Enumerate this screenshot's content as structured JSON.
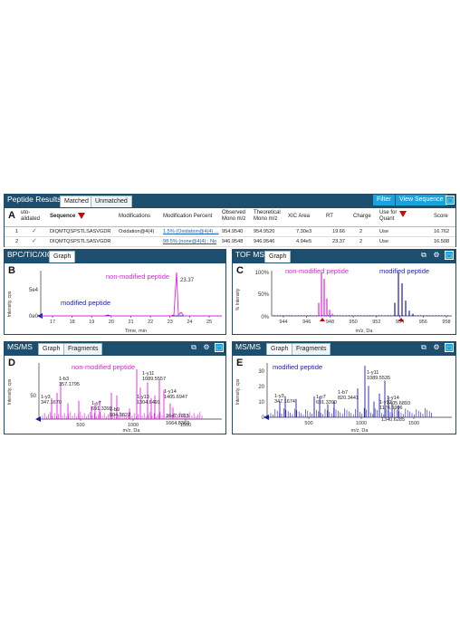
{
  "peptide_results": {
    "title": "Peptide Results",
    "tabs": [
      "Matched",
      "Unmatched"
    ],
    "filter_label": "Filter",
    "view_sequence_label": "View Sequence",
    "panel_letter": "A",
    "columns": [
      "uto-\nalidated",
      "Sequence",
      "Modifications",
      "Modification Percent",
      "Observed\nMono m/z",
      "Theoretical\nMono m/z",
      "XIC Area",
      "RT",
      "Charge",
      "Use for\nQuant",
      "Score"
    ],
    "rows": [
      {
        "n": "1",
        "check": "✓",
        "sequence": "DIQMTQSPSTLSASVGDR",
        "modifications": "Oxidation@4(4)",
        "mod_percent": "1.5% (Oxidation@4(4) ...",
        "observed": "954.9540",
        "theoretical": "954.9520",
        "xic": "7.30e3",
        "rt": "19.66",
        "charge": "2",
        "quant": "Use",
        "score": "16.762"
      },
      {
        "n": "2",
        "check": "✓",
        "sequence": "DIQMTQSPSTLSASVGDR",
        "modifications": "",
        "mod_percent": "98.5% (none@4(4) ; No",
        "observed": "946.9548",
        "theoretical": "946.9546",
        "xic": "4.94e5",
        "rt": "23.37",
        "charge": "2",
        "quant": "Use",
        "score": "16.508"
      }
    ]
  },
  "bpc": {
    "title": "BPC/TIC/XIC",
    "tab": "Graph",
    "letter": "B",
    "ylabel": "Intensity, cps",
    "xlabel": "Time, min",
    "xticks": [
      "17",
      "18",
      "19",
      "20",
      "21",
      "22",
      "23",
      "24",
      "25"
    ],
    "yticks": [
      "5e4",
      "0e0"
    ],
    "peak_label": "23.37",
    "label_unmod": "non-modified peptide",
    "label_mod": "modified peptide",
    "color_unmod": "#e020e0",
    "color_mod": "#1a1ab0"
  },
  "tofms": {
    "title": "TOF MS",
    "tab": "Graph",
    "letter": "C",
    "ylabel": "% Intensity",
    "xlabel": "m/z, Da",
    "xticks": [
      "944",
      "946",
      "948",
      "950",
      "952",
      "954",
      "956",
      "958"
    ],
    "yticks": [
      "100%",
      "50%",
      "0%"
    ],
    "label_unmod": "non-modified peptide",
    "label_mod": "modified peptide"
  },
  "msms_d": {
    "title": "MS/MS",
    "tabs": [
      "Graph",
      "Fragments"
    ],
    "letter": "D",
    "ylabel": "Intensity, cps",
    "xlabel": "m/z, Da",
    "xticks": [
      "500",
      "1000",
      "1500"
    ],
    "yticks": [
      "50"
    ],
    "label": "non-modified peptide",
    "annotations": [
      {
        "ion": "1-b3",
        "mz": "357.1795"
      },
      {
        "ion": "1-y3",
        "mz": "347.1670"
      },
      {
        "ion": "1-y7",
        "mz": "691.3392"
      },
      {
        "ion": "1-b9",
        "mz": "804.3627"
      },
      {
        "ion": "1-y11",
        "mz": "1089.5557"
      },
      {
        "ion": "1-y13",
        "mz": "1304.6491"
      },
      {
        "ion": "1-y14",
        "mz": "1405.6947"
      },
      {
        "ion": "",
        "mz": "1647.7815"
      },
      {
        "ion": "",
        "mz": "1664.8383"
      }
    ]
  },
  "msms_e": {
    "title": "MS/MS",
    "tabs": [
      "Graph",
      "Fragments"
    ],
    "letter": "E",
    "ylabel": "Intensity, cps",
    "xlabel": "m/z, Da",
    "xticks": [
      "500",
      "1000",
      "1500"
    ],
    "yticks": [
      "30",
      "20",
      "10",
      "0"
    ],
    "label": "modified peptide",
    "annotations": [
      {
        "ion": "1-y11",
        "mz": "1089.5535"
      },
      {
        "ion": "1-y3",
        "mz": "347.1674"
      },
      {
        "ion": "1-y7",
        "mz": "691.3390"
      },
      {
        "ion": "1-b7",
        "mz": "820.3441"
      },
      {
        "ion": "1-y12",
        "mz": "1176.5906"
      },
      {
        "ion": "1-y14",
        "mz": "1405.6893"
      },
      {
        "ion": "",
        "mz": "1340.6285"
      }
    ]
  },
  "icons": [
    "copy-icon",
    "gear-icon",
    "window-icon",
    "filter-funnel-icon",
    "checkmark-icon"
  ],
  "colors": {
    "header": "#1d4e6e",
    "button": "#19a3db",
    "unmodified": "#e020e0",
    "modified": "#1a1ab0"
  }
}
